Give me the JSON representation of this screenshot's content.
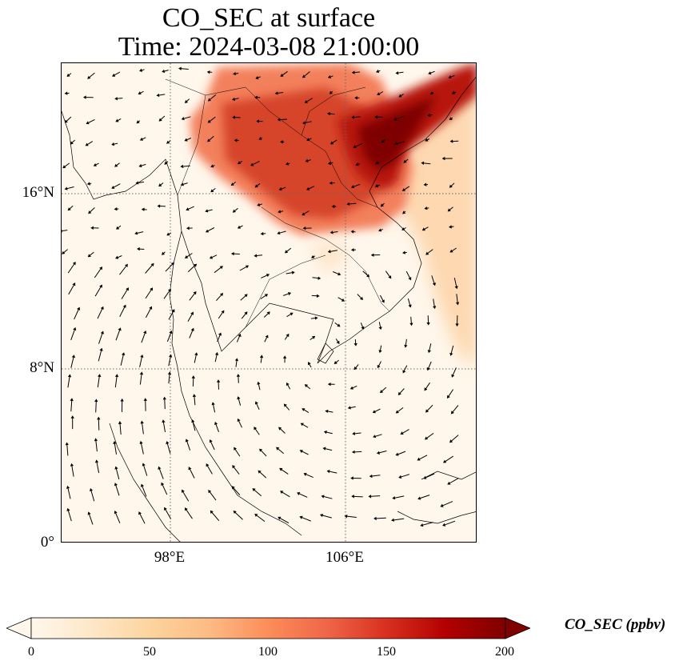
{
  "title": {
    "line1": "CO_SEC at surface",
    "line2": "Time: 2024-03-08 21:00:00"
  },
  "map": {
    "lat_ticks": [
      "16°N",
      "8°N",
      "0°"
    ],
    "lon_ticks": [
      "98°E",
      "106°E"
    ],
    "lat_values": [
      16,
      8,
      0
    ],
    "lon_values": [
      98,
      106
    ],
    "extent": {
      "lon_min": 93,
      "lon_max": 112,
      "lat_min": 0,
      "lat_max": 22
    },
    "gridlines": true,
    "plume_regions": [
      {
        "name": "northern-plume",
        "value_ppbv": 130
      },
      {
        "name": "gulf-of-tonkin-plume",
        "value_ppbv": 190
      },
      {
        "name": "south-china-sea-tail",
        "value_ppbv": 40
      }
    ]
  },
  "colorbar": {
    "label": "CO_SEC (ppbv)",
    "ticks": [
      "0",
      "50",
      "100",
      "150",
      "200"
    ],
    "min": 0,
    "max": 200,
    "colormap": [
      "#fff7ec",
      "#fee8c8",
      "#fdd49e",
      "#fdbb84",
      "#fc8d59",
      "#ef6548",
      "#d7301f",
      "#b30000",
      "#7f0000"
    ],
    "extend": "both"
  }
}
